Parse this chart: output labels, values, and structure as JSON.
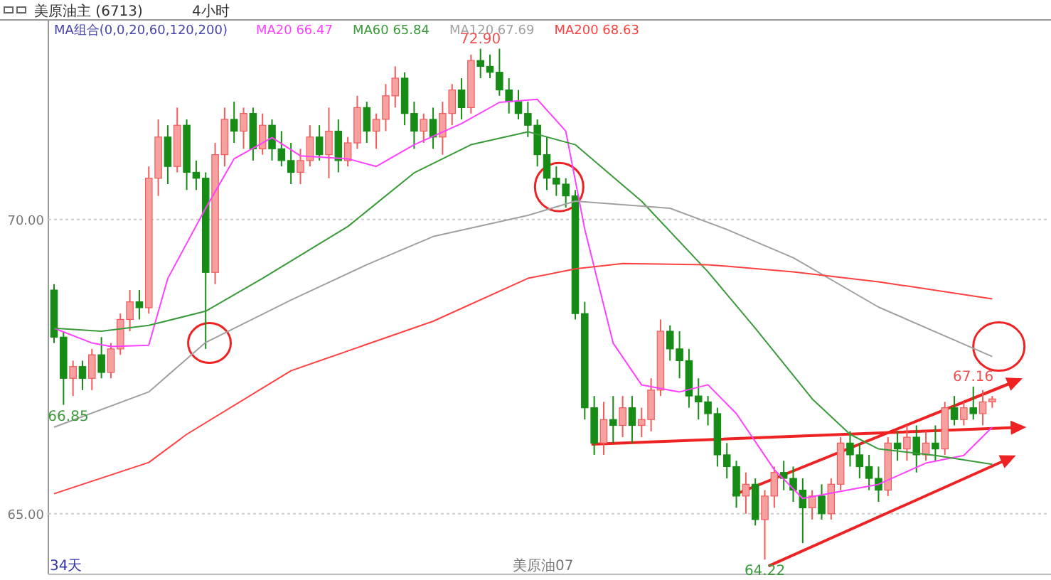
{
  "chart_data": {
    "type": "candlestick",
    "title": "美原油主 (6713)",
    "subtitle": "4小时",
    "legend_title": "MA组合(0,0,20,60,120,200)",
    "categories": [
      null,
      null,
      null,
      null,
      null,
      null,
      null,
      null,
      null,
      null,
      null,
      null,
      null,
      null,
      null,
      null,
      null,
      null,
      null,
      null,
      null,
      null,
      null,
      null,
      null,
      null,
      null,
      null,
      null,
      null,
      null,
      null,
      null,
      null,
      null,
      null,
      null,
      null,
      null,
      null,
      null,
      null,
      null,
      null,
      null,
      null,
      null,
      null,
      null,
      null,
      null,
      null,
      null,
      null,
      null,
      null,
      null,
      null,
      null,
      null,
      null,
      null,
      null,
      null,
      null,
      null,
      null,
      null,
      null,
      null,
      null,
      null,
      null,
      null,
      null,
      null,
      null,
      null,
      null,
      null,
      null,
      null,
      null,
      null,
      null,
      null,
      null,
      null,
      null,
      null,
      null,
      null,
      null,
      null,
      null,
      null,
      null,
      null,
      null,
      null
    ],
    "ohlc": [
      [
        68.8,
        68.9,
        67.9,
        68.0
      ],
      [
        68.0,
        68.1,
        66.85,
        67.3
      ],
      [
        67.3,
        67.6,
        67.0,
        67.5
      ],
      [
        67.5,
        67.6,
        67.1,
        67.3
      ],
      [
        67.3,
        67.8,
        67.1,
        67.7
      ],
      [
        67.7,
        68.0,
        67.3,
        67.4
      ],
      [
        67.4,
        67.9,
        67.3,
        67.8
      ],
      [
        67.8,
        68.4,
        67.7,
        68.3
      ],
      [
        68.3,
        68.8,
        68.1,
        68.6
      ],
      [
        68.6,
        68.8,
        68.3,
        68.5
      ],
      [
        68.5,
        70.9,
        68.4,
        70.7
      ],
      [
        70.7,
        71.7,
        70.4,
        71.4
      ],
      [
        71.4,
        71.6,
        70.6,
        70.9
      ],
      [
        70.9,
        71.9,
        70.8,
        71.6
      ],
      [
        71.6,
        71.7,
        70.5,
        70.8
      ],
      [
        70.8,
        71.0,
        70.5,
        70.7
      ],
      [
        70.7,
        70.8,
        67.8,
        69.1
      ],
      [
        69.1,
        71.3,
        68.9,
        71.1
      ],
      [
        71.1,
        71.9,
        70.9,
        71.7
      ],
      [
        71.7,
        72.0,
        71.3,
        71.5
      ],
      [
        71.5,
        71.9,
        71.2,
        71.8
      ],
      [
        71.8,
        71.9,
        71.0,
        71.2
      ],
      [
        71.2,
        71.8,
        71.1,
        71.6
      ],
      [
        71.6,
        71.7,
        71.0,
        71.2
      ],
      [
        71.2,
        71.5,
        70.9,
        71.0
      ],
      [
        71.0,
        71.3,
        70.6,
        70.8
      ],
      [
        70.8,
        71.2,
        70.6,
        71.0
      ],
      [
        71.0,
        71.6,
        70.9,
        71.4
      ],
      [
        71.4,
        71.6,
        71.0,
        71.1
      ],
      [
        71.1,
        71.9,
        70.7,
        71.5
      ],
      [
        71.5,
        71.7,
        70.8,
        71.0
      ],
      [
        71.0,
        71.4,
        70.9,
        71.3
      ],
      [
        71.3,
        72.1,
        71.2,
        71.9
      ],
      [
        71.9,
        72.0,
        71.3,
        71.5
      ],
      [
        71.5,
        71.8,
        71.2,
        71.7
      ],
      [
        71.7,
        72.3,
        71.5,
        72.1
      ],
      [
        72.1,
        72.6,
        71.9,
        72.4
      ],
      [
        72.4,
        72.5,
        71.6,
        71.8
      ],
      [
        71.8,
        72.0,
        71.2,
        71.5
      ],
      [
        71.5,
        71.8,
        71.3,
        71.7
      ],
      [
        71.7,
        71.9,
        71.2,
        71.4
      ],
      [
        71.4,
        72.0,
        71.1,
        71.8
      ],
      [
        71.8,
        72.3,
        71.6,
        72.2
      ],
      [
        72.2,
        72.4,
        71.7,
        71.9
      ],
      [
        71.9,
        72.8,
        71.8,
        72.7
      ],
      [
        72.7,
        72.9,
        72.4,
        72.6
      ],
      [
        72.6,
        72.8,
        72.4,
        72.5
      ],
      [
        72.5,
        72.9,
        72.1,
        72.2
      ],
      [
        72.2,
        72.4,
        71.8,
        72.0
      ],
      [
        72.0,
        72.2,
        71.7,
        71.8
      ],
      [
        71.8,
        72.0,
        71.4,
        71.6
      ],
      [
        71.6,
        71.7,
        70.9,
        71.1
      ],
      [
        71.1,
        71.4,
        70.5,
        70.7
      ],
      [
        70.7,
        70.9,
        70.4,
        70.6
      ],
      [
        70.6,
        70.7,
        70.2,
        70.4
      ],
      [
        70.4,
        70.5,
        68.3,
        68.4
      ],
      [
        68.4,
        68.6,
        66.6,
        66.8
      ],
      [
        66.8,
        67.0,
        66.0,
        66.2
      ],
      [
        66.2,
        66.9,
        66.0,
        66.6
      ],
      [
        66.6,
        67.0,
        66.2,
        66.5
      ],
      [
        66.5,
        67.0,
        66.3,
        66.8
      ],
      [
        66.8,
        67.0,
        66.2,
        66.5
      ],
      [
        66.5,
        66.8,
        66.3,
        66.6
      ],
      [
        66.6,
        67.3,
        66.4,
        67.1
      ],
      [
        67.1,
        68.3,
        67.0,
        68.1
      ],
      [
        68.1,
        68.2,
        67.6,
        67.8
      ],
      [
        67.8,
        68.1,
        67.3,
        67.6
      ],
      [
        67.6,
        67.8,
        66.8,
        67.0
      ],
      [
        67.0,
        67.3,
        66.6,
        66.9
      ],
      [
        66.9,
        67.0,
        66.5,
        66.7
      ],
      [
        66.7,
        66.8,
        65.8,
        66.0
      ],
      [
        66.0,
        66.2,
        65.6,
        65.8
      ],
      [
        65.8,
        65.9,
        65.1,
        65.3
      ],
      [
        65.3,
        65.7,
        65.0,
        65.5
      ],
      [
        65.5,
        65.6,
        64.8,
        64.9
      ],
      [
        64.9,
        65.4,
        64.22,
        65.3
      ],
      [
        65.3,
        65.8,
        65.1,
        65.7
      ],
      [
        65.7,
        65.9,
        65.4,
        65.6
      ],
      [
        65.6,
        65.8,
        65.2,
        65.4
      ],
      [
        65.4,
        65.6,
        64.5,
        65.1
      ],
      [
        65.1,
        65.4,
        64.9,
        65.3
      ],
      [
        65.3,
        65.5,
        64.9,
        65.0
      ],
      [
        65.0,
        65.6,
        64.9,
        65.5
      ],
      [
        65.5,
        66.3,
        65.4,
        66.2
      ],
      [
        66.2,
        66.4,
        65.8,
        66.0
      ],
      [
        66.0,
        66.2,
        65.6,
        65.8
      ],
      [
        65.8,
        66.0,
        65.4,
        65.6
      ],
      [
        65.6,
        65.8,
        65.2,
        65.4
      ],
      [
        65.4,
        66.3,
        65.3,
        66.2
      ],
      [
        66.2,
        66.4,
        65.9,
        66.1
      ],
      [
        66.1,
        66.5,
        65.9,
        66.3
      ],
      [
        66.3,
        66.5,
        65.7,
        66.0
      ],
      [
        66.0,
        66.4,
        65.9,
        66.2
      ],
      [
        66.2,
        66.5,
        65.9,
        66.1
      ],
      [
        66.1,
        66.9,
        66.0,
        66.8
      ],
      [
        66.8,
        67.0,
        66.5,
        66.6
      ],
      [
        66.6,
        66.9,
        66.5,
        66.8
      ],
      [
        66.8,
        67.16,
        66.6,
        66.7
      ],
      [
        66.7,
        67.1,
        66.5,
        66.9
      ],
      [
        66.9,
        67.0,
        66.8,
        66.95
      ]
    ],
    "series": [
      {
        "name": "MA20 66.47",
        "type": "line",
        "color": "#ff40ff",
        "values": [
          68.15,
          null,
          null,
          null,
          67.9,
          null,
          67.84,
          null,
          null,
          null,
          67.86,
          null,
          69.0,
          null,
          null,
          null,
          70.19,
          null,
          null,
          71.03,
          null,
          null,
          null,
          71.39,
          null,
          null,
          71.08,
          null,
          null,
          null,
          null,
          71.03,
          null,
          null,
          70.9,
          null,
          null,
          null,
          71.27,
          null,
          null,
          null,
          null,
          71.63,
          null,
          null,
          null,
          71.99,
          null,
          null,
          null,
          72.04,
          null,
          null,
          71.5,
          null,
          69.83,
          null,
          null,
          67.9,
          null,
          null,
          67.19,
          null,
          null,
          null,
          67.07,
          null,
          null,
          67.19,
          null,
          null,
          66.7,
          null,
          null,
          null,
          65.75,
          null,
          null,
          65.26,
          null,
          null,
          null,
          65.38,
          null,
          null,
          null,
          65.5,
          null,
          null,
          null,
          null,
          65.86,
          null,
          null,
          null,
          65.99,
          null,
          null,
          66.47
        ]
      },
      {
        "name": "MA60 65.84",
        "type": "line",
        "color": "#3a9a3a",
        "values": [
          68.15,
          null,
          null,
          null,
          null,
          68.1,
          null,
          null,
          null,
          null,
          68.2,
          null,
          null,
          null,
          null,
          null,
          68.44,
          null,
          null,
          null,
          null,
          null,
          69.0,
          null,
          null,
          null,
          null,
          null,
          null,
          null,
          null,
          69.88,
          null,
          null,
          null,
          null,
          null,
          null,
          70.79,
          null,
          null,
          null,
          null,
          null,
          71.27,
          null,
          null,
          null,
          null,
          null,
          71.49,
          null,
          null,
          null,
          null,
          71.27,
          null,
          null,
          null,
          null,
          null,
          null,
          70.31,
          null,
          null,
          null,
          null,
          null,
          null,
          69.11,
          null,
          null,
          null,
          null,
          68.15,
          null,
          null,
          null,
          null,
          null,
          66.95,
          null,
          null,
          null,
          66.35,
          null,
          null,
          66.1,
          null,
          null,
          null,
          null,
          null,
          65.99,
          null,
          null,
          null,
          null,
          null,
          65.84
        ]
      },
      {
        "name": "MA120 67.69",
        "type": "line",
        "color": "#a0a0a0",
        "values": [
          66.47,
          null,
          null,
          null,
          null,
          null,
          null,
          null,
          null,
          null,
          67.07,
          null,
          null,
          null,
          null,
          null,
          67.91,
          null,
          null,
          null,
          null,
          null,
          null,
          null,
          null,
          68.63,
          null,
          null,
          null,
          null,
          null,
          null,
          null,
          69.23,
          null,
          null,
          null,
          null,
          null,
          null,
          69.71,
          null,
          null,
          null,
          null,
          null,
          null,
          null,
          null,
          null,
          70.07,
          null,
          null,
          null,
          null,
          70.31,
          null,
          null,
          null,
          null,
          null,
          null,
          null,
          null,
          null,
          70.19,
          null,
          null,
          null,
          null,
          null,
          69.83,
          null,
          null,
          null,
          null,
          null,
          null,
          69.35,
          null,
          null,
          null,
          null,
          null,
          null,
          null,
          null,
          68.51,
          null,
          null,
          null,
          null,
          null,
          null,
          null,
          null,
          null,
          null,
          null,
          67.67
        ]
      },
      {
        "name": "MA200 68.63",
        "type": "line",
        "color": "#ff4040",
        "values": [
          65.34,
          null,
          null,
          null,
          null,
          null,
          null,
          null,
          null,
          null,
          65.87,
          null,
          null,
          null,
          66.35,
          null,
          null,
          null,
          null,
          null,
          null,
          null,
          null,
          null,
          null,
          67.43,
          null,
          null,
          null,
          null,
          null,
          null,
          null,
          null,
          null,
          null,
          null,
          null,
          null,
          null,
          68.27,
          null,
          null,
          null,
          null,
          null,
          null,
          null,
          null,
          null,
          69.0,
          null,
          null,
          null,
          null,
          69.16,
          null,
          null,
          null,
          null,
          69.25,
          null,
          null,
          null,
          null,
          null,
          null,
          null,
          null,
          69.23,
          null,
          null,
          null,
          null,
          null,
          null,
          null,
          null,
          69.11,
          null,
          null,
          null,
          null,
          null,
          null,
          null,
          null,
          68.94,
          null,
          null,
          null,
          null,
          null,
          null,
          null,
          null,
          null,
          null,
          null,
          68.65
        ]
      }
    ],
    "ylim": [
      63.97,
      73.39
    ],
    "yticks": [
      {
        "value": 65,
        "label": "65.00"
      },
      {
        "value": 70,
        "label": "70.00"
      }
    ],
    "grid": "y",
    "legend": "top left",
    "annotations": [
      "34天",
      "美原油07",
      {
        "text": "72.90",
        "y": 72.9
      },
      {
        "text": "64.22",
        "y": 64.22
      },
      {
        "text": "67.16",
        "y": 67.16
      },
      {
        "text": "66.85",
        "y": 66.85
      }
    ]
  }
}
